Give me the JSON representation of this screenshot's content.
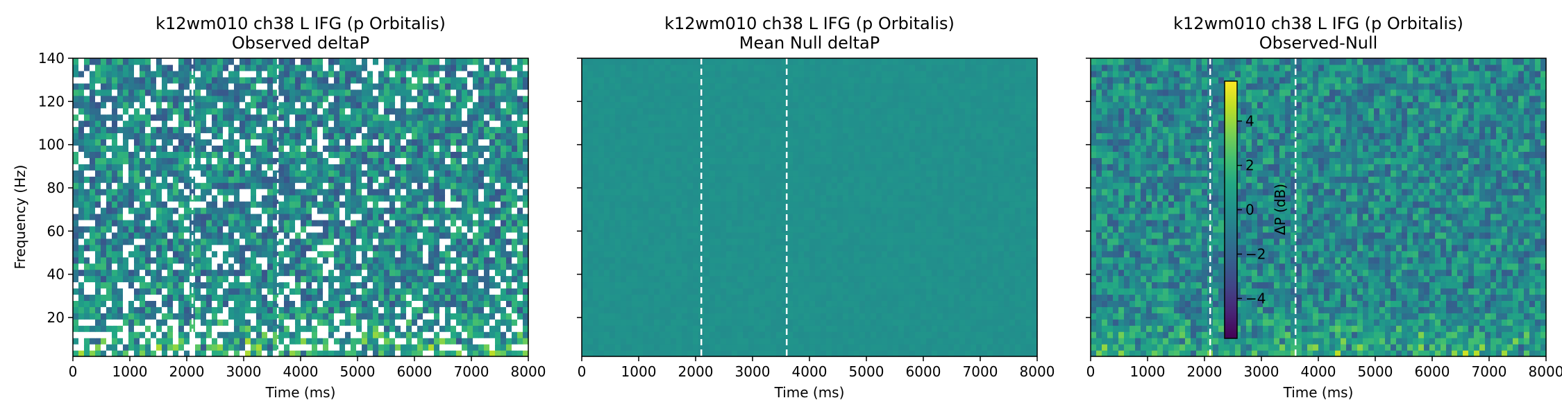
{
  "chart_data": [
    {
      "type": "heatmap",
      "title": "k12wm010 ch38 L IFG (p Orbitalis)",
      "subtitle": "Observed deltaP",
      "xlabel": "Time (ms)",
      "ylabel": "Frequency (Hz)",
      "xlim": [
        0,
        8000
      ],
      "ylim": [
        2,
        140
      ],
      "xticks": [
        "0",
        "1000",
        "2000",
        "3000",
        "4000",
        "5000",
        "6000",
        "7000",
        "8000"
      ],
      "yticks": [
        "20",
        "40",
        "60",
        "80",
        "100",
        "120",
        "140"
      ],
      "vlines_ms": [
        2100,
        3600
      ],
      "colormap": "viridis",
      "clim": [
        -5.8,
        5.8
      ],
      "note_visible": "many white gaps (masked cells) scattered across the map",
      "colors": {
        "vline": "#ffffff",
        "mask": "#ffffff",
        "low": "#440154",
        "mid": "#21918c",
        "high": "#fde725"
      }
    },
    {
      "type": "heatmap",
      "title": "k12wm010 ch38 L IFG (p Orbitalis)",
      "subtitle": "Mean Null deltaP",
      "xlabel": "Time (ms)",
      "ylabel": "",
      "xlim": [
        0,
        8000
      ],
      "ylim": [
        2,
        140
      ],
      "xticks": [
        "0",
        "1000",
        "2000",
        "3000",
        "4000",
        "5000",
        "6000",
        "7000",
        "8000"
      ],
      "yticks": [],
      "vlines_ms": [
        2100,
        3600
      ],
      "colormap": "viridis",
      "clim": [
        -5.8,
        5.8
      ],
      "colors": {
        "vline": "#ffffff",
        "fill": "#24878e"
      }
    },
    {
      "type": "heatmap",
      "title": "k12wm010 ch38 L IFG (p Orbitalis)",
      "subtitle": "Observed-Null",
      "xlabel": "Time (ms)",
      "ylabel": "",
      "xlim": [
        0,
        8000
      ],
      "ylim": [
        2,
        140
      ],
      "xticks": [
        "0",
        "1000",
        "2000",
        "3000",
        "4000",
        "5000",
        "6000",
        "7000",
        "8000"
      ],
      "yticks": [],
      "vlines_ms": [
        2100,
        3600
      ],
      "colormap": "viridis",
      "clim": [
        -5.8,
        5.8
      ],
      "colorbar": {
        "label": "ΔP (dB)",
        "ticks": [
          "4",
          "2",
          "0",
          "−2",
          "−4"
        ],
        "tick_values": [
          4,
          2,
          0,
          -2,
          -4
        ],
        "range": [
          -5.8,
          5.8
        ],
        "placement": "inside-left"
      }
    }
  ]
}
